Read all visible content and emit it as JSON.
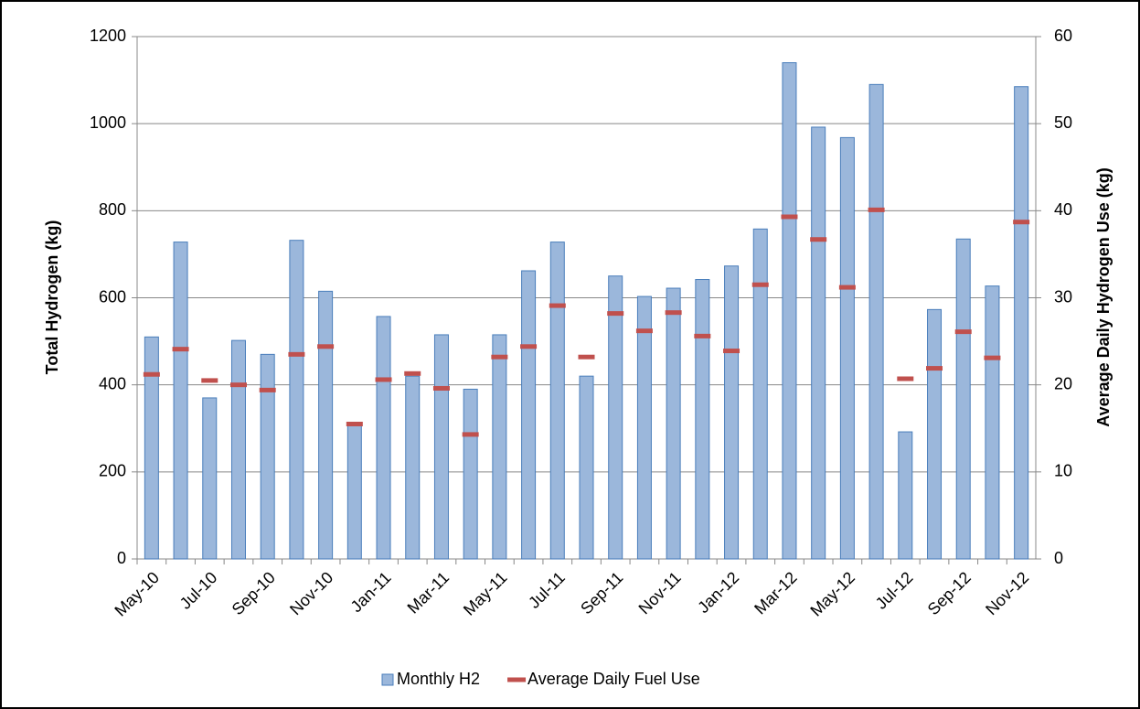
{
  "chart_data": {
    "type": "bar",
    "y_label": "Total Hydrogen (kg)",
    "y2_label": "Average Daily Hydrogen Use (kg)",
    "categories": [
      "May-10",
      null,
      "Jul-10",
      null,
      "Sep-10",
      null,
      "Nov-10",
      null,
      "Jan-11",
      null,
      "Mar-11",
      null,
      "May-11",
      null,
      "Jul-11",
      null,
      "Sep-11",
      null,
      "Nov-11",
      null,
      "Jan-12",
      null,
      "Mar-12",
      null,
      "May-12",
      null,
      "Jul-12",
      null,
      "Sep-12",
      null,
      "Nov-12"
    ],
    "series": [
      {
        "name": "Monthly H2",
        "type": "bar",
        "color": "#9bb7db",
        "values": [
          510,
          728,
          370,
          502,
          470,
          732,
          615,
          312,
          557,
          420,
          515,
          390,
          515,
          662,
          728,
          420,
          650,
          603,
          622,
          642,
          673,
          758,
          1140,
          992,
          968,
          1090,
          292,
          573,
          735,
          627,
          1085
        ]
      },
      {
        "name": "Average Daily Fuel Use",
        "type": "dash",
        "axis": "y2",
        "color": "#c0504d",
        "values": [
          21.2,
          24.1,
          20.5,
          20.0,
          19.4,
          23.5,
          24.4,
          15.5,
          20.6,
          21.3,
          19.6,
          14.3,
          23.2,
          24.4,
          29.1,
          23.2,
          28.2,
          26.2,
          28.3,
          25.6,
          23.9,
          31.5,
          39.3,
          36.7,
          31.2,
          40.1,
          20.7,
          21.9,
          26.1,
          23.1,
          38.7
        ]
      }
    ],
    "ylim": [
      0,
      1200
    ],
    "yticks": [
      0,
      200,
      400,
      600,
      800,
      1000,
      1200
    ],
    "y2lim": [
      0,
      60
    ],
    "y2ticks": [
      0,
      10,
      20,
      30,
      40,
      50,
      60
    ],
    "grid": true,
    "legend": "bottom"
  }
}
